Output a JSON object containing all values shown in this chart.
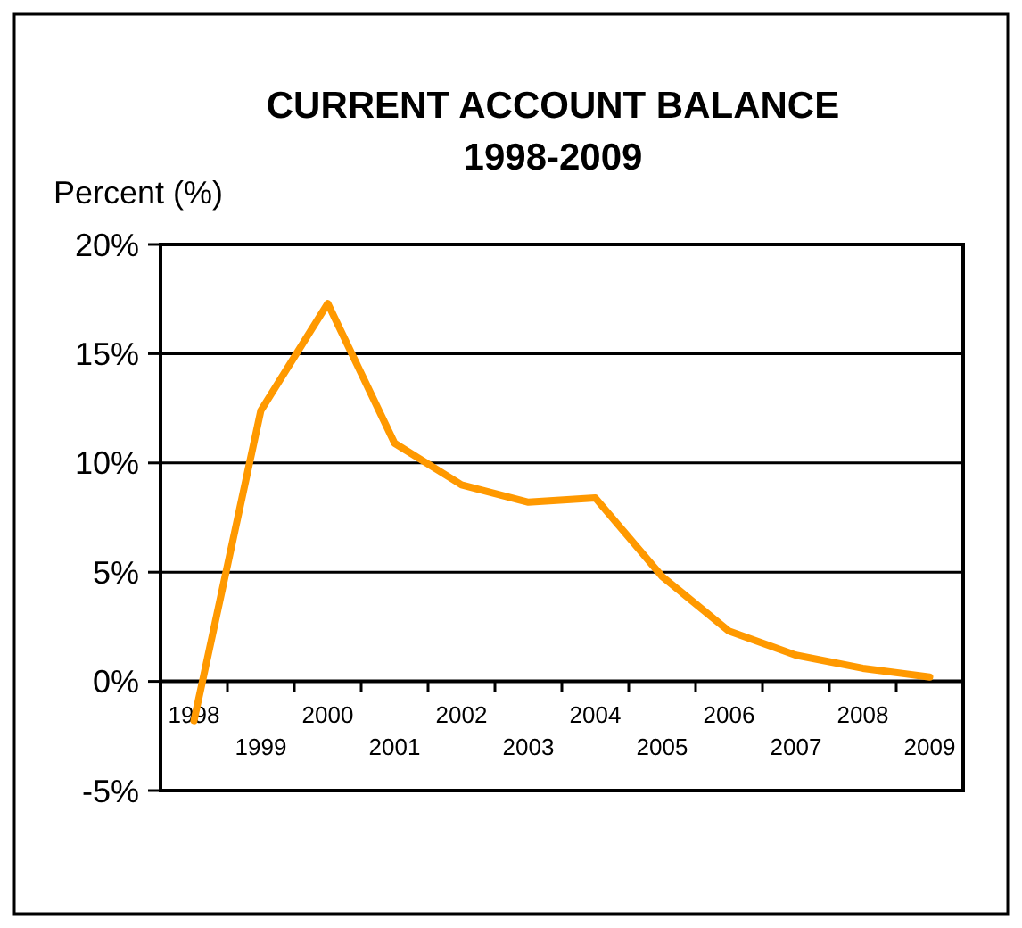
{
  "chart_data": {
    "type": "line",
    "title": "CURRENT ACCOUNT BALANCE",
    "subtitle": "1998-2009",
    "ylabel": "Percent (%)",
    "categories": [
      "1998",
      "1999",
      "2000",
      "2001",
      "2002",
      "2003",
      "2004",
      "2005",
      "2006",
      "2007",
      "2008",
      "2009"
    ],
    "series": [
      {
        "color": "#ff9900",
        "values": [
          -1.8,
          12.4,
          17.3,
          10.9,
          9.0,
          8.2,
          8.4,
          4.8,
          2.3,
          1.2,
          0.6,
          0.2
        ]
      }
    ],
    "ylim": [
      -5,
      20
    ],
    "yticks": [
      {
        "value": -5,
        "label": "-5%"
      },
      {
        "value": 0,
        "label": "0%"
      },
      {
        "value": 5,
        "label": "5%"
      },
      {
        "value": 10,
        "label": "10%"
      },
      {
        "value": 15,
        "label": "15%"
      },
      {
        "value": 20,
        "label": "20%"
      }
    ],
    "grid": "y",
    "marker": "none",
    "line_style": "solid"
  }
}
